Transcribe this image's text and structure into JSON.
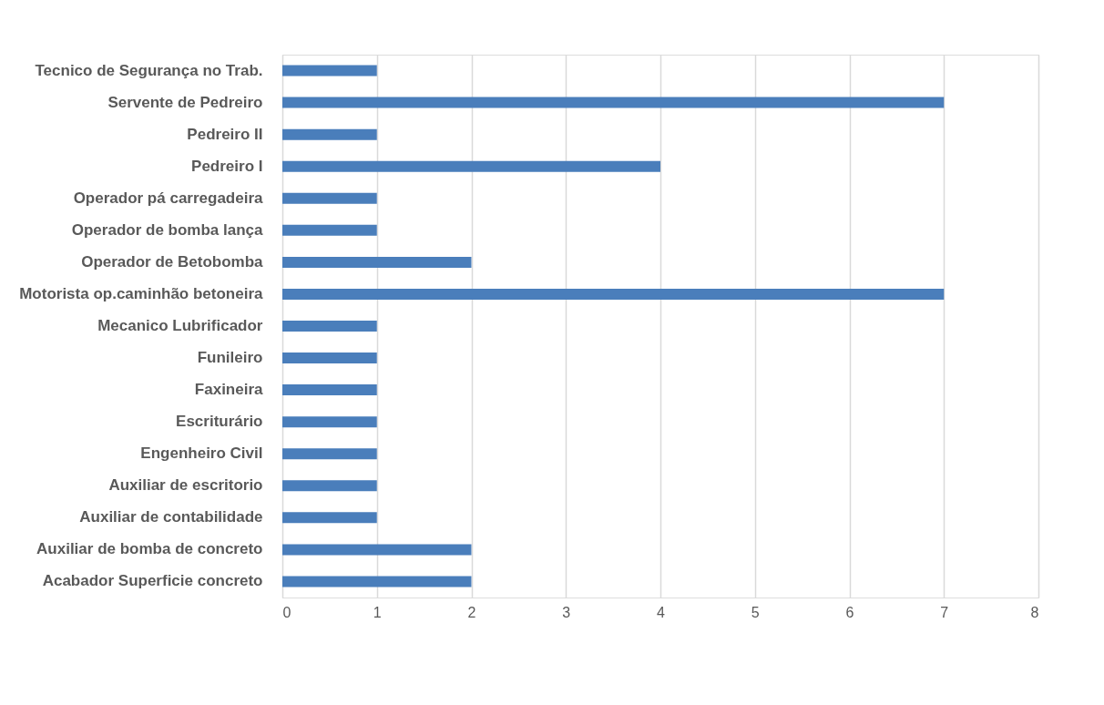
{
  "chart_data": {
    "type": "bar",
    "orientation": "horizontal",
    "categories": [
      "Tecnico de Segurança no Trab.",
      "Servente de Pedreiro",
      "Pedreiro II",
      "Pedreiro I",
      "Operador pá carregadeira",
      "Operador de bomba lança",
      "Operador de Betobomba",
      "Motorista op.caminhão betoneira",
      "Mecanico Lubrificador",
      "Funileiro",
      "Faxineira",
      "Escriturário",
      "Engenheiro Civil",
      "Auxiliar de escritorio",
      "Auxiliar de contabilidade",
      "Auxiliar de bomba de concreto",
      "Acabador Superficie concreto"
    ],
    "values": [
      1,
      7,
      1,
      4,
      1,
      1,
      2,
      7,
      1,
      1,
      1,
      1,
      1,
      1,
      1,
      2,
      2
    ],
    "color": "#4a7ebb",
    "xlim": [
      0,
      8
    ],
    "xticks": [
      0,
      1,
      2,
      3,
      4,
      5,
      6,
      7,
      8
    ],
    "grid": "x"
  }
}
